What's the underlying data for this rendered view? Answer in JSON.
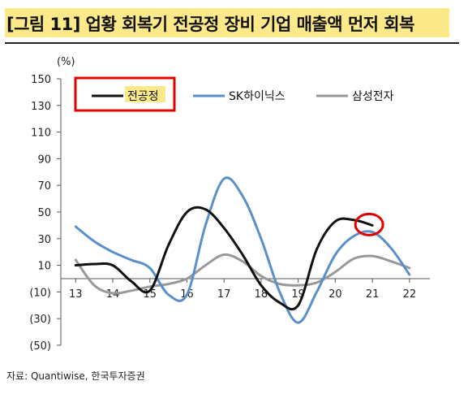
{
  "header": {
    "title": "[그림 11] 업황 회복기 전공정 장비 기업 매출액 먼저 회복"
  },
  "chart_data": {
    "type": "line",
    "unit_label": "(%)",
    "x": [
      "13",
      "14",
      "15",
      "16",
      "17",
      "18",
      "19",
      "20",
      "21",
      "22"
    ],
    "y_ticks": [
      "150",
      "130",
      "110",
      "90",
      "70",
      "50",
      "30",
      "10",
      "(10)",
      "(30)",
      "(50)"
    ],
    "ylim": [
      -50,
      150
    ],
    "legend_position": "top",
    "series": [
      {
        "name": "전공정",
        "color": "#111111",
        "points": [
          [
            13,
            10
          ],
          [
            13.5,
            11
          ],
          [
            14,
            10
          ],
          [
            14.5,
            -2
          ],
          [
            15,
            -9
          ],
          [
            15.5,
            25
          ],
          [
            16,
            50
          ],
          [
            16.5,
            52
          ],
          [
            17,
            38
          ],
          [
            17.5,
            18
          ],
          [
            18,
            -5
          ],
          [
            18.5,
            -18
          ],
          [
            19,
            -20
          ],
          [
            19.5,
            22
          ],
          [
            20,
            43
          ],
          [
            20.5,
            44
          ],
          [
            21,
            40
          ]
        ]
      },
      {
        "name": "SK하이닉스",
        "color": "#5a8fca",
        "points": [
          [
            13,
            39
          ],
          [
            13.5,
            28
          ],
          [
            14,
            20
          ],
          [
            14.5,
            14
          ],
          [
            15,
            8
          ],
          [
            15.5,
            -12
          ],
          [
            16,
            -12
          ],
          [
            16.5,
            40
          ],
          [
            17,
            75
          ],
          [
            17.5,
            62
          ],
          [
            18,
            30
          ],
          [
            18.5,
            -10
          ],
          [
            19,
            -33
          ],
          [
            19.5,
            -10
          ],
          [
            20,
            18
          ],
          [
            20.5,
            32
          ],
          [
            21,
            35
          ],
          [
            21.5,
            23
          ],
          [
            22,
            3
          ]
        ]
      },
      {
        "name": "삼성전자",
        "color": "#999999",
        "points": [
          [
            13,
            14
          ],
          [
            13.5,
            -5
          ],
          [
            14,
            -11
          ],
          [
            14.5,
            -9
          ],
          [
            15,
            -6
          ],
          [
            15.5,
            -4
          ],
          [
            16,
            0
          ],
          [
            16.5,
            10
          ],
          [
            17,
            18
          ],
          [
            17.5,
            13
          ],
          [
            18,
            2
          ],
          [
            18.5,
            -4
          ],
          [
            19,
            -5
          ],
          [
            19.5,
            -3
          ],
          [
            20,
            5
          ],
          [
            20.5,
            15
          ],
          [
            21,
            17
          ],
          [
            21.5,
            13
          ],
          [
            22,
            8
          ]
        ]
      }
    ],
    "highlight": {
      "series": "전공정",
      "x": 21,
      "y": 40,
      "shape": "circle",
      "color": "#e00000"
    },
    "legend_box": {
      "series": "전공정",
      "color": "#e00000"
    }
  },
  "footer": {
    "source": "자료: Quantiwise, 한국투자증권"
  }
}
